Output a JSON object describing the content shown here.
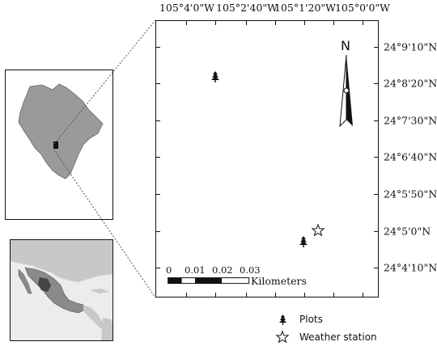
{
  "lon_labels": [
    "105°4'0\"W",
    "105°2'40\"W",
    "105°1'20\"W",
    "105°0'0\"W"
  ],
  "lat_labels": [
    "24°9'10\"N",
    "24°8'20\"N",
    "24°7'30\"N",
    "24°6'40\"N",
    "24°5'50\"N",
    "24°5'0\"N",
    "24°4'10\"N"
  ],
  "north_label": "N",
  "scale_bar": {
    "ticks": [
      "0",
      "0.01",
      "0.02",
      "0.03"
    ],
    "unit": "Kilometers"
  },
  "legend": {
    "plots_label": "Plots",
    "weather_label": "Weather station"
  },
  "colors": {
    "region_fill": "#9a9a9a",
    "highlight_region": "#555555",
    "land_light": "#c8c8c8",
    "water": "#ececec",
    "frame": "#111111"
  },
  "icons": [
    "tree-icon",
    "star-icon",
    "north-arrow-icon"
  ]
}
